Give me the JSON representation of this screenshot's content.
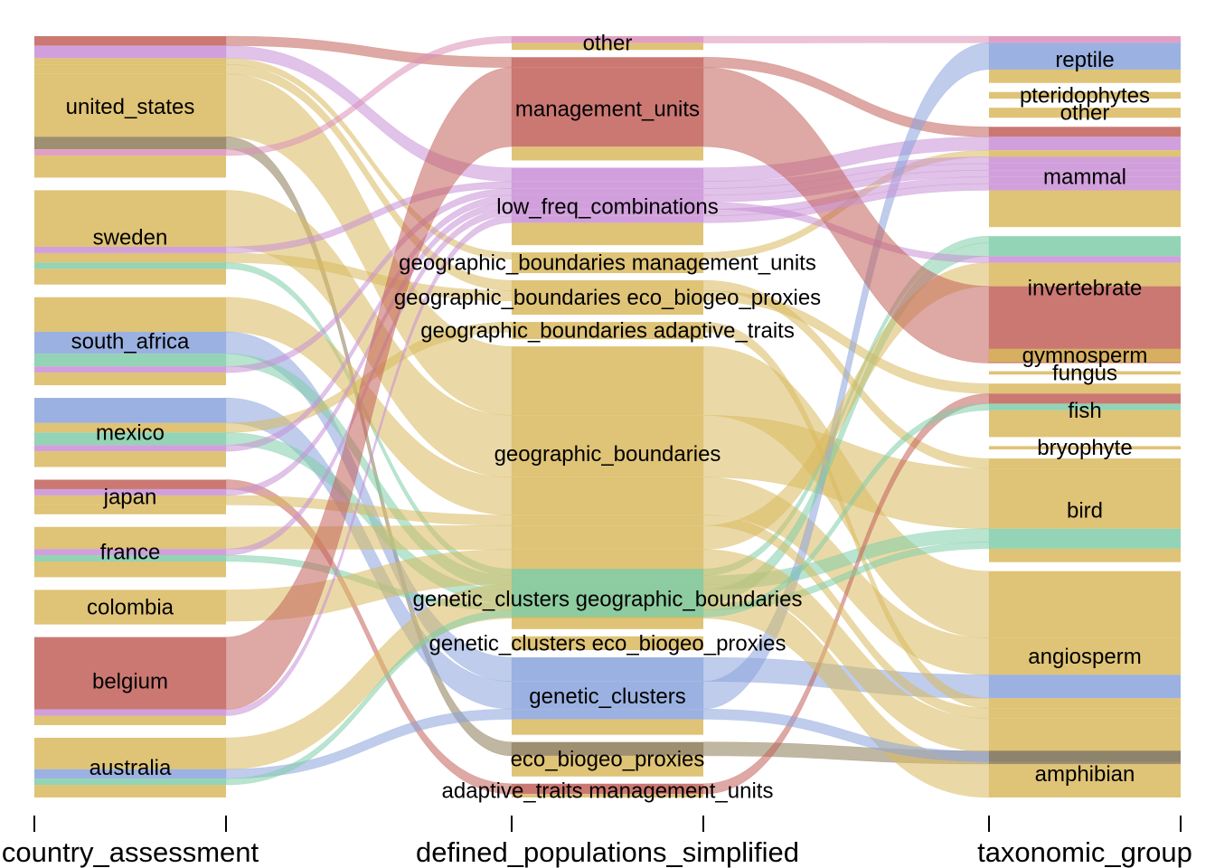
{
  "chart_data": {
    "type": "alluvial",
    "axes": [
      "country_assessment",
      "defined_populations_simplified",
      "taxonomic_group"
    ],
    "colors": {
      "gold": "#d9b95e",
      "red": "#c2605a",
      "purple": "#c98fd6",
      "blue": "#8aa3dc",
      "green": "#7fcda8",
      "olive": "#8c7b57",
      "pink": "#dc8fb8"
    },
    "strata": {
      "country_assessment": [
        {
          "label": "united_states",
          "value": 90
        },
        {
          "label": "sweden",
          "value": 60
        },
        {
          "label": "south_africa",
          "value": 56
        },
        {
          "label": "mexico",
          "value": 44
        },
        {
          "label": "japan",
          "value": 22
        },
        {
          "label": "france",
          "value": 32
        },
        {
          "label": "colombia",
          "value": 22
        },
        {
          "label": "belgium",
          "value": 56
        },
        {
          "label": "australia",
          "value": 38
        }
      ],
      "defined_populations_simplified": [
        {
          "label": "other",
          "value": 8
        },
        {
          "label": "management_units",
          "value": 60
        },
        {
          "label": "low_freq_combinations",
          "value": 45
        },
        {
          "label": "geographic_boundaries management_units",
          "value": 12
        },
        {
          "label": "geographic_boundaries eco_biogeo_proxies",
          "value": 20
        },
        {
          "label": "geographic_boundaries adaptive_traits",
          "value": 10
        },
        {
          "label": "geographic_boundaries",
          "value": 125
        },
        {
          "label": "genetic_clusters geographic_boundaries",
          "value": 35
        },
        {
          "label": "genetic_clusters eco_biogeo_proxies",
          "value": 8
        },
        {
          "label": "genetic_clusters",
          "value": 45
        },
        {
          "label": "eco_biogeo_proxies",
          "value": 20
        },
        {
          "label": "adaptive_traits management_units",
          "value": 8
        }
      ],
      "taxonomic_group": [
        {
          "label": "reptile",
          "value": 28
        },
        {
          "label": "pteridophytes",
          "value": 4
        },
        {
          "label": "other",
          "value": 6
        },
        {
          "label": "mammal",
          "value": 60
        },
        {
          "label": "invertebrate",
          "value": 62
        },
        {
          "label": "gymnosperm",
          "value": 8
        },
        {
          "label": "fungus",
          "value": 2
        },
        {
          "label": "fish",
          "value": 32
        },
        {
          "label": "bryophyte",
          "value": 2
        },
        {
          "label": "bird",
          "value": 62
        },
        {
          "label": "angiosperm",
          "value": 102
        },
        {
          "label": "amphibian",
          "value": 28
        }
      ]
    },
    "flows": [
      {
        "from": "united_states",
        "to": "management_units",
        "taxon": "mammal",
        "value": 6,
        "color": "red"
      },
      {
        "from": "united_states",
        "to": "low_freq_combinations",
        "taxon": "mammal",
        "value": 8,
        "color": "purple"
      },
      {
        "from": "united_states",
        "to": "geographic_boundaries management_units",
        "taxon": "mammal",
        "value": 4,
        "color": "gold"
      },
      {
        "from": "united_states",
        "to": "geographic_boundaries eco_biogeo_proxies",
        "taxon": "bird",
        "value": 6,
        "color": "gold"
      },
      {
        "from": "united_states",
        "to": "geographic_boundaries",
        "taxon": "angiosperm",
        "value": 40,
        "color": "gold"
      },
      {
        "from": "united_states",
        "to": "eco_biogeo_proxies",
        "taxon": "amphibian",
        "value": 8,
        "color": "olive"
      },
      {
        "from": "united_states",
        "to": "other",
        "taxon": "reptile",
        "value": 4,
        "color": "pink"
      },
      {
        "from": "sweden",
        "to": "geographic_boundaries",
        "taxon": "bird",
        "value": 36,
        "color": "gold"
      },
      {
        "from": "sweden",
        "to": "low_freq_combinations",
        "taxon": "mammal",
        "value": 4,
        "color": "purple"
      },
      {
        "from": "sweden",
        "to": "geographic_boundaries eco_biogeo_proxies",
        "taxon": "fish",
        "value": 6,
        "color": "gold"
      },
      {
        "from": "sweden",
        "to": "genetic_clusters geographic_boundaries",
        "taxon": "invertebrate",
        "value": 4,
        "color": "green"
      },
      {
        "from": "south_africa",
        "to": "geographic_boundaries",
        "taxon": "angiosperm",
        "value": 22,
        "color": "gold"
      },
      {
        "from": "south_africa",
        "to": "genetic_clusters",
        "taxon": "angiosperm",
        "value": 14,
        "color": "blue"
      },
      {
        "from": "south_africa",
        "to": "genetic_clusters geographic_boundaries",
        "taxon": "bird",
        "value": 8,
        "color": "green"
      },
      {
        "from": "south_africa",
        "to": "low_freq_combinations",
        "taxon": "mammal",
        "value": 4,
        "color": "purple"
      },
      {
        "from": "mexico",
        "to": "genetic_clusters",
        "taxon": "reptile",
        "value": 16,
        "color": "blue"
      },
      {
        "from": "mexico",
        "to": "geographic_boundaries adaptive_traits",
        "taxon": "angiosperm",
        "value": 6,
        "color": "gold"
      },
      {
        "from": "mexico",
        "to": "genetic_clusters geographic_boundaries",
        "taxon": "invertebrate",
        "value": 8,
        "color": "green"
      },
      {
        "from": "mexico",
        "to": "low_freq_combinations",
        "taxon": "mammal",
        "value": 4,
        "color": "purple"
      },
      {
        "from": "japan",
        "to": "adaptive_traits management_units",
        "taxon": "fish",
        "value": 6,
        "color": "red"
      },
      {
        "from": "japan",
        "to": "low_freq_combinations",
        "taxon": "invertebrate",
        "value": 4,
        "color": "purple"
      },
      {
        "from": "japan",
        "to": "geographic_boundaries",
        "taxon": "angiosperm",
        "value": 6,
        "color": "gold"
      },
      {
        "from": "france",
        "to": "geographic_boundaries",
        "taxon": "invertebrate",
        "value": 14,
        "color": "gold"
      },
      {
        "from": "france",
        "to": "low_freq_combinations",
        "taxon": "mammal",
        "value": 4,
        "color": "purple"
      },
      {
        "from": "france",
        "to": "genetic_clusters geographic_boundaries",
        "taxon": "bird",
        "value": 4,
        "color": "green"
      },
      {
        "from": "colombia",
        "to": "geographic_boundaries",
        "taxon": "angiosperm",
        "value": 20,
        "color": "gold"
      },
      {
        "from": "belgium",
        "to": "management_units",
        "taxon": "invertebrate",
        "value": 46,
        "color": "red"
      },
      {
        "from": "belgium",
        "to": "low_freq_combinations",
        "taxon": "mammal",
        "value": 4,
        "color": "purple"
      },
      {
        "from": "australia",
        "to": "geographic_boundaries",
        "taxon": "amphibian",
        "value": 20,
        "color": "gold"
      },
      {
        "from": "australia",
        "to": "genetic_clusters",
        "taxon": "angiosperm",
        "value": 6,
        "color": "blue"
      },
      {
        "from": "australia",
        "to": "genetic_clusters geographic_boundaries",
        "taxon": "fish",
        "value": 4,
        "color": "green"
      }
    ]
  }
}
